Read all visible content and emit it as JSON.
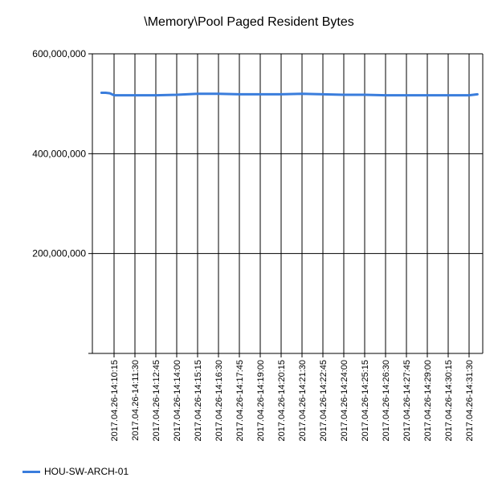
{
  "chart_data": {
    "type": "line",
    "title": "\\Memory\\Pool Paged Resident Bytes",
    "xlabel": "",
    "ylabel": "",
    "ylim": [
      0,
      600000000
    ],
    "y_ticks": [
      0,
      200000000,
      400000000,
      600000000
    ],
    "y_tick_labels": [
      "",
      "200,000,000",
      "400,000,000",
      "600,000,000"
    ],
    "grid": true,
    "legend_position": "bottom-left",
    "x_tick_labels": [
      "2017.04.26-14:10:15",
      "2017.04.26-14:11:30",
      "2017.04.26-14:12:45",
      "2017.04.26-14:14:00",
      "2017.04.26-14:15:15",
      "2017.04.26-14:16:30",
      "2017.04.26-14:17:45",
      "2017.04.26-14:19:00",
      "2017.04.26-14:20:15",
      "2017.04.26-14:21:30",
      "2017.04.26-14:22:45",
      "2017.04.26-14:24:00",
      "2017.04.26-14:25:15",
      "2017.04.26-14:26:30",
      "2017.04.26-14:27:45",
      "2017.04.26-14:29:00",
      "2017.04.26-14:30:15",
      "2017.04.26-14:31:30"
    ],
    "x": [
      "2017.04.26-14:09:30",
      "2017.04.26-14:09:45",
      "2017.04.26-14:10:00",
      "2017.04.26-14:10:15",
      "2017.04.26-14:11:30",
      "2017.04.26-14:12:45",
      "2017.04.26-14:14:00",
      "2017.04.26-14:15:15",
      "2017.04.26-14:16:30",
      "2017.04.26-14:17:45",
      "2017.04.26-14:19:00",
      "2017.04.26-14:20:15",
      "2017.04.26-14:21:30",
      "2017.04.26-14:22:45",
      "2017.04.26-14:24:00",
      "2017.04.26-14:25:15",
      "2017.04.26-14:26:30",
      "2017.04.26-14:27:45",
      "2017.04.26-14:29:00",
      "2017.04.26-14:30:15",
      "2017.04.26-14:31:30",
      "2017.04.26-14:32:00"
    ],
    "series": [
      {
        "name": "HOU-SW-ARCH-01",
        "color": "#3a7ddc",
        "values": [
          522000000,
          522000000,
          521000000,
          517000000,
          517000000,
          517000000,
          518000000,
          520000000,
          520000000,
          519000000,
          519000000,
          519000000,
          520000000,
          519000000,
          518000000,
          518000000,
          517000000,
          517000000,
          517000000,
          517000000,
          517000000,
          519000000
        ]
      }
    ]
  }
}
